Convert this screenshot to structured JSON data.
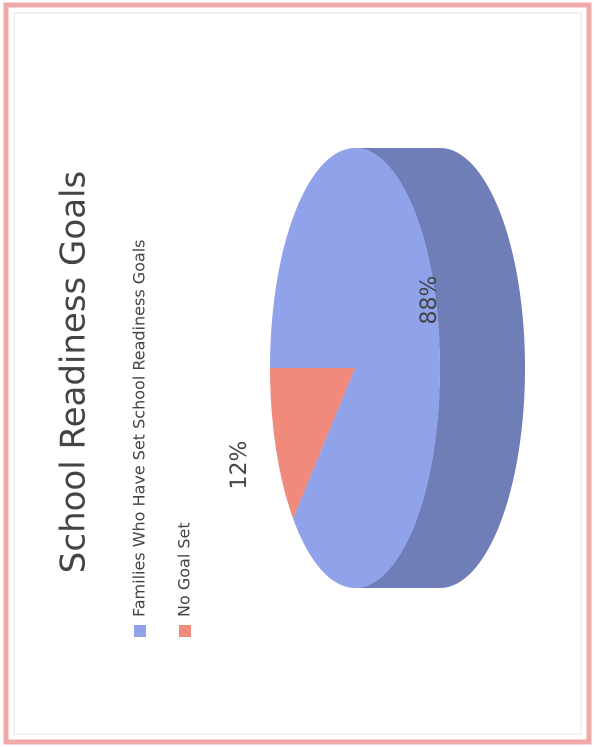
{
  "chart_data": {
    "type": "pie",
    "title": "School Readiness Goals",
    "categories": [
      "Families Who Have Set School Readiness Goals",
      "No Goal Set"
    ],
    "values": [
      88,
      12
    ],
    "value_labels": [
      "88%",
      "12%"
    ],
    "colors": [
      "#8fa2ea",
      "#ef8a7c"
    ],
    "legend": "top"
  }
}
